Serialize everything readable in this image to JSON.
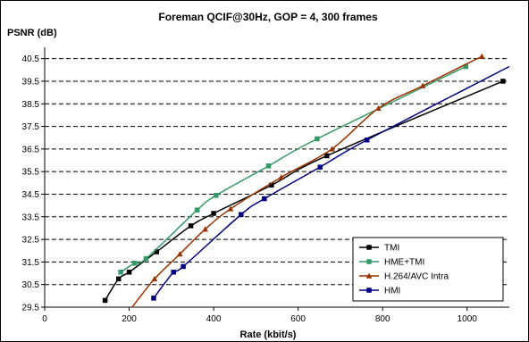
{
  "chart_data": {
    "type": "line",
    "title": "Foreman QCIF@30Hz, GOP = 4, 300 frames",
    "xlabel": "Rate (kbit/s)",
    "ylabel": "PSNR (dB)",
    "xlim": [
      0,
      1100
    ],
    "ylim": [
      29.5,
      41.0
    ],
    "x_ticks": [
      "0",
      "200",
      "400",
      "600",
      "800",
      "1000"
    ],
    "y_ticks": [
      "29.5",
      "30.5",
      "31.5",
      "32.5",
      "33.5",
      "34.5",
      "35.5",
      "36.5",
      "37.5",
      "38.5",
      "39.5",
      "40.5"
    ],
    "grid": "horizontal-dashed",
    "legend_position": "bottom-right",
    "series": [
      {
        "name": "TMI",
        "color": "#000000",
        "marker": "square",
        "points": [
          [
            143,
            29.8
          ],
          [
            175,
            30.75
          ],
          [
            200,
            31.05
          ],
          [
            265,
            31.95
          ],
          [
            346,
            33.1
          ],
          [
            400,
            33.65
          ],
          [
            537,
            34.9
          ],
          [
            668,
            36.2
          ],
          [
            1085,
            39.5
          ]
        ],
        "marked": [
          true,
          true,
          true,
          true,
          true,
          true,
          true,
          true,
          true
        ]
      },
      {
        "name": "HME+TMI",
        "color": "#339966",
        "marker": "square",
        "points": [
          [
            180,
            31.05
          ],
          [
            213,
            31.45
          ],
          [
            240,
            31.65
          ],
          [
            361,
            33.8
          ],
          [
            406,
            34.45
          ],
          [
            530,
            35.75
          ],
          [
            645,
            36.95
          ],
          [
            997,
            40.15
          ]
        ],
        "marked": [
          true,
          true,
          true,
          true,
          true,
          true,
          true,
          true
        ]
      },
      {
        "name": "H.264/AVC Intra",
        "color": "#993300",
        "marker": "triangle",
        "points": [
          [
            207,
            29.5
          ],
          [
            260,
            30.75
          ],
          [
            320,
            31.85
          ],
          [
            380,
            32.95
          ],
          [
            440,
            33.85
          ],
          [
            560,
            35.25
          ],
          [
            680,
            36.5
          ],
          [
            790,
            38.3
          ],
          [
            895,
            39.3
          ],
          [
            1035,
            40.6
          ]
        ],
        "marked": [
          false,
          true,
          true,
          true,
          true,
          true,
          true,
          true,
          true,
          true
        ]
      },
      {
        "name": "HMI",
        "color": "#000080",
        "marker": "square",
        "points": [
          [
            258,
            29.9
          ],
          [
            305,
            31.05
          ],
          [
            328,
            31.3
          ],
          [
            465,
            33.6
          ],
          [
            520,
            34.3
          ],
          [
            652,
            35.7
          ],
          [
            763,
            36.9
          ],
          [
            1100,
            40.15
          ]
        ],
        "marked": [
          true,
          true,
          true,
          true,
          true,
          true,
          true,
          false
        ]
      }
    ]
  }
}
